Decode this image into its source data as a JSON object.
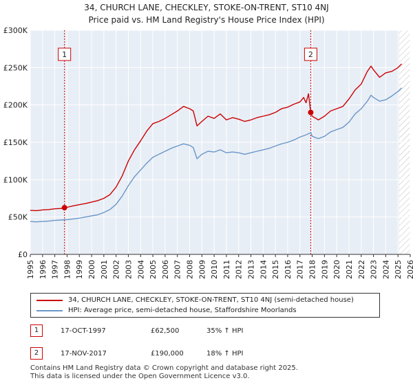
{
  "title_line1": "34, CHURCH LANE, CHECKLEY, STOKE-ON-TRENT, ST10 4NJ",
  "title_line2": "Price paid vs. HM Land Registry's House Price Index (HPI)",
  "colors": {
    "price": "#cc0000",
    "hpi": "#6a96c8",
    "grid": "#dddddd",
    "plot_bg": "#e8eef6",
    "marker": "#cc0000"
  },
  "chart_data": {
    "type": "line",
    "xlim": [
      1995,
      2026
    ],
    "ylim": [
      0,
      300000
    ],
    "y_ticks": [
      {
        "value": 0,
        "label": "£0"
      },
      {
        "value": 50000,
        "label": "£50K"
      },
      {
        "value": 100000,
        "label": "£100K"
      },
      {
        "value": 150000,
        "label": "£150K"
      },
      {
        "value": 200000,
        "label": "£200K"
      },
      {
        "value": 250000,
        "label": "£250K"
      },
      {
        "value": 300000,
        "label": "£300K"
      }
    ],
    "x_ticks": [
      "1995",
      "1996",
      "1997",
      "1998",
      "1999",
      "2000",
      "2001",
      "2002",
      "2003",
      "2004",
      "2005",
      "2006",
      "2007",
      "2008",
      "2009",
      "2010",
      "2011",
      "2012",
      "2013",
      "2014",
      "2015",
      "2016",
      "2017",
      "2018",
      "2019",
      "2020",
      "2021",
      "2022",
      "2023",
      "2024",
      "2025",
      "2026"
    ],
    "forecast_start": 2025.1,
    "series": [
      {
        "name": "34, CHURCH LANE, CHECKLEY, STOKE-ON-TRENT, ST10 4NJ (semi-detached house)",
        "color": "#cc0000",
        "x": [
          1995,
          1995.5,
          1996,
          1996.5,
          1997,
          1997.5,
          1997.79,
          1998,
          1998.5,
          1999,
          1999.5,
          2000,
          2000.5,
          2001,
          2001.5,
          2002,
          2002.5,
          2003,
          2003.5,
          2004,
          2004.5,
          2005,
          2005.5,
          2006,
          2006.5,
          2007,
          2007.5,
          2008,
          2008.3,
          2008.6,
          2009,
          2009.5,
          2010,
          2010.5,
          2011,
          2011.5,
          2012,
          2012.5,
          2013,
          2013.5,
          2014,
          2014.5,
          2015,
          2015.5,
          2016,
          2016.5,
          2017,
          2017.3,
          2017.5,
          2017.7,
          2017.88,
          2018,
          2018.5,
          2019,
          2019.5,
          2020,
          2020.5,
          2021,
          2021.5,
          2022,
          2022.5,
          2022.8,
          2023,
          2023.5,
          2024,
          2024.5,
          2025,
          2025.3
        ],
        "y": [
          59000,
          58500,
          59500,
          60000,
          61000,
          61500,
          62500,
          63000,
          65000,
          66500,
          68000,
          70000,
          72000,
          75000,
          80000,
          90000,
          105000,
          125000,
          140000,
          152000,
          165000,
          175000,
          178000,
          182000,
          187000,
          192000,
          198000,
          195000,
          192000,
          172000,
          178000,
          185000,
          182000,
          188000,
          180000,
          183000,
          181000,
          178000,
          180000,
          183000,
          185000,
          187000,
          190000,
          195000,
          197000,
          201000,
          204000,
          210000,
          203000,
          215000,
          190000,
          185000,
          180000,
          185000,
          192000,
          195000,
          198000,
          208000,
          220000,
          228000,
          245000,
          252000,
          247000,
          237000,
          243000,
          245000,
          250000,
          255000
        ]
      },
      {
        "name": "HPI: Average price, semi-detached house, Staffordshire Moorlands",
        "color": "#6a96c8",
        "x": [
          1995,
          1995.5,
          1996,
          1996.5,
          1997,
          1997.5,
          1998,
          1998.5,
          1999,
          1999.5,
          2000,
          2000.5,
          2001,
          2001.5,
          2002,
          2002.5,
          2003,
          2003.5,
          2004,
          2004.5,
          2005,
          2005.5,
          2006,
          2006.5,
          2007,
          2007.5,
          2008,
          2008.3,
          2008.6,
          2009,
          2009.5,
          2010,
          2010.5,
          2011,
          2011.5,
          2012,
          2012.5,
          2013,
          2013.5,
          2014,
          2014.5,
          2015,
          2015.5,
          2016,
          2016.5,
          2017,
          2017.5,
          2017.9,
          2018,
          2018.5,
          2019,
          2019.5,
          2020,
          2020.5,
          2021,
          2021.5,
          2022,
          2022.5,
          2022.8,
          2023,
          2023.5,
          2024,
          2024.5,
          2025,
          2025.3
        ],
        "y": [
          44000,
          43500,
          44000,
          44500,
          45500,
          46000,
          46500,
          47500,
          48500,
          50000,
          51500,
          53000,
          56000,
          60000,
          67000,
          78000,
          92000,
          104000,
          113000,
          122000,
          130000,
          134000,
          138000,
          142000,
          145000,
          148000,
          146000,
          143000,
          128000,
          134000,
          138000,
          137000,
          140000,
          136000,
          137000,
          136000,
          134000,
          136000,
          138000,
          140000,
          142000,
          145000,
          148000,
          150000,
          153000,
          157000,
          160000,
          163000,
          158000,
          155000,
          158000,
          164000,
          167000,
          170000,
          177000,
          188000,
          195000,
          205000,
          213000,
          210000,
          205000,
          207000,
          212000,
          218000,
          223000
        ]
      }
    ],
    "annotations": [
      {
        "label": "1",
        "x": 1997.79,
        "y": 62500
      },
      {
        "label": "2",
        "x": 2017.88,
        "y": 190000
      }
    ]
  },
  "legend": {
    "price_label": "34, CHURCH LANE, CHECKLEY, STOKE-ON-TRENT, ST10 4NJ (semi-detached house)",
    "hpi_label": "HPI: Average price, semi-detached house, Staffordshire Moorlands"
  },
  "transactions": [
    {
      "num": "1",
      "date": "17-OCT-1997",
      "price": "£62,500",
      "hpi": "35% ↑ HPI"
    },
    {
      "num": "2",
      "date": "17-NOV-2017",
      "price": "£190,000",
      "hpi": "18% ↑ HPI"
    }
  ],
  "footer_line1": "Contains HM Land Registry data © Crown copyright and database right 2025.",
  "footer_line2": "This data is licensed under the Open Government Licence v3.0."
}
